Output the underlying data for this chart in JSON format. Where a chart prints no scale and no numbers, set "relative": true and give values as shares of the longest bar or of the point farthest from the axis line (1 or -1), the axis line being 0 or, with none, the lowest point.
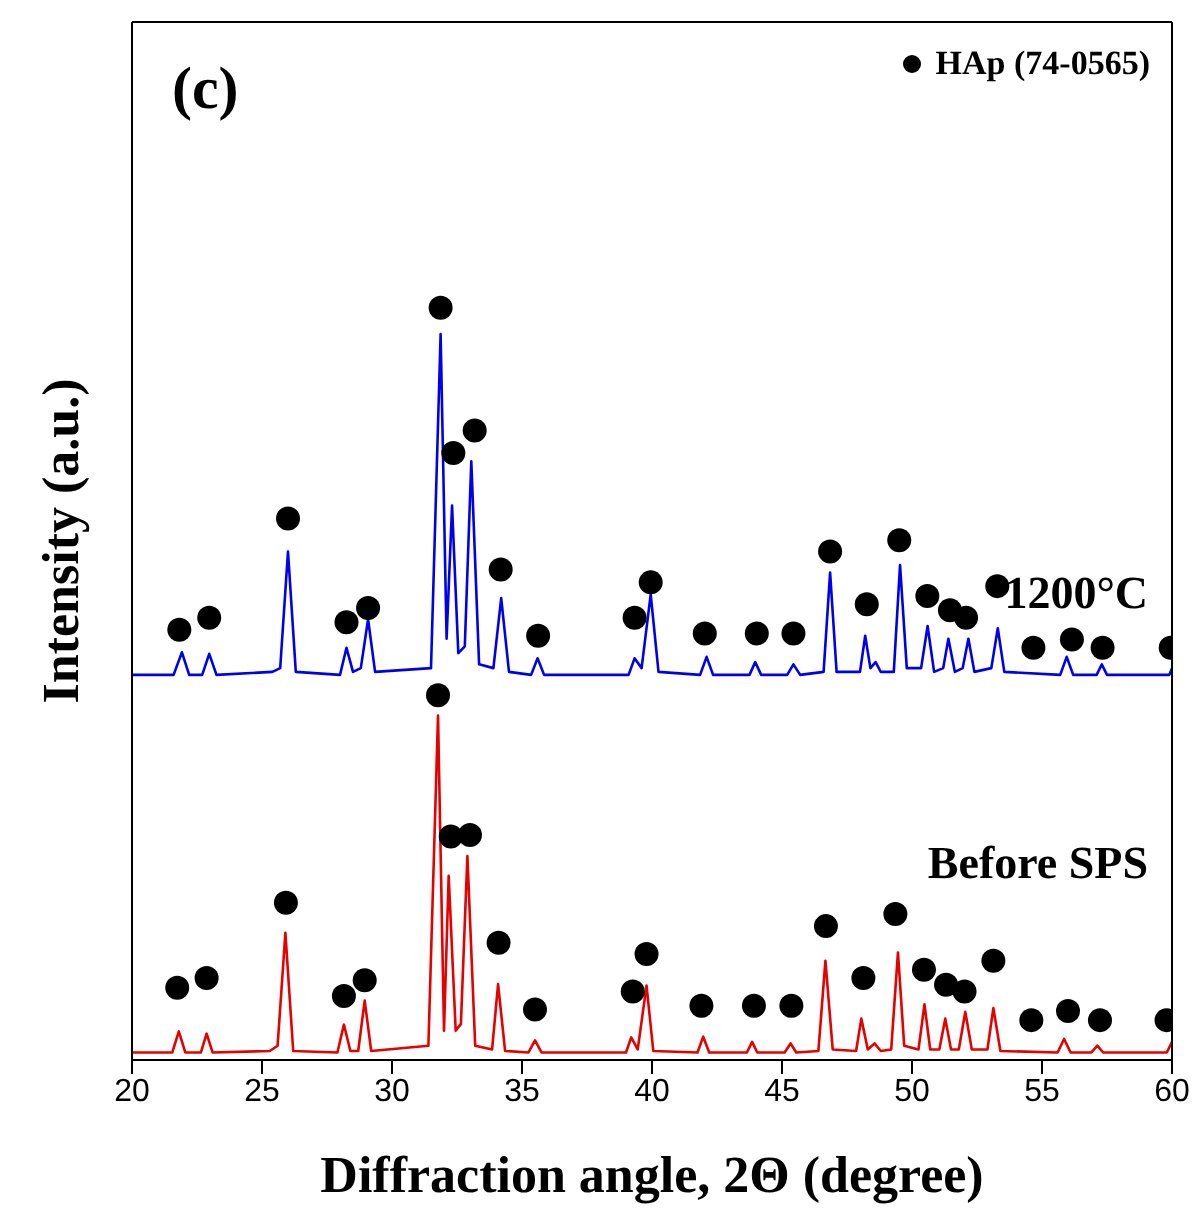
{
  "chart_data": {
    "type": "line",
    "relative": true,
    "xlabel": "Diffraction angle, 2Θ (degree)",
    "ylabel": "Intensity (a.u.)",
    "xlim": [
      20,
      60
    ],
    "xticks": [
      20,
      25,
      30,
      35,
      40,
      45,
      50,
      55,
      60
    ],
    "legend": "top right",
    "annotations": [
      "(c)"
    ],
    "series": [
      {
        "name": "1200°C",
        "color": "#0000ee",
        "x": [
          20,
          21.6,
          21.92,
          22.2,
          22.7,
          22.97,
          23.25,
          25.4,
          25.7,
          26.0,
          26.3,
          28.0,
          28.25,
          28.5,
          28.8,
          29.08,
          29.35,
          31.5,
          31.87,
          32.1,
          32.31,
          32.55,
          32.8,
          33.05,
          33.35,
          33.9,
          34.2,
          34.5,
          35.35,
          35.6,
          35.85,
          39.1,
          39.33,
          39.6,
          39.95,
          40.25,
          41.85,
          42.1,
          42.35,
          43.75,
          43.97,
          44.2,
          45.2,
          45.44,
          45.7,
          46.6,
          46.85,
          47.1,
          48.0,
          48.2,
          48.4,
          48.6,
          48.8,
          49.3,
          49.54,
          49.8,
          50.35,
          50.6,
          50.85,
          51.2,
          51.4,
          51.65,
          51.95,
          52.17,
          52.4,
          53.05,
          53.3,
          53.55,
          55.7,
          55.95,
          56.2,
          57.1,
          57.3,
          57.5,
          59.9,
          60
        ],
        "values": [
          0.512,
          0.512,
          0.542,
          0.512,
          0.512,
          0.54,
          0.512,
          0.516,
          0.521,
          0.676,
          0.516,
          0.512,
          0.548,
          0.516,
          0.521,
          0.586,
          0.516,
          0.521,
          0.965,
          0.56,
          0.737,
          0.541,
          0.55,
          0.796,
          0.526,
          0.521,
          0.614,
          0.516,
          0.512,
          0.534,
          0.512,
          0.512,
          0.534,
          0.521,
          0.619,
          0.516,
          0.512,
          0.536,
          0.512,
          0.512,
          0.529,
          0.512,
          0.512,
          0.526,
          0.512,
          0.516,
          0.648,
          0.516,
          0.516,
          0.564,
          0.521,
          0.529,
          0.516,
          0.516,
          0.658,
          0.521,
          0.521,
          0.577,
          0.516,
          0.521,
          0.56,
          0.516,
          0.521,
          0.56,
          0.516,
          0.521,
          0.574,
          0.516,
          0.512,
          0.536,
          0.512,
          0.512,
          0.526,
          0.512,
          0.512,
          0.521
        ]
      },
      {
        "name": "Before SPS",
        "color": "#e60000",
        "x": [
          20,
          21.55,
          21.8,
          22.05,
          22.65,
          22.87,
          23.1,
          25.3,
          25.6,
          25.9,
          26.2,
          27.9,
          28.15,
          28.4,
          28.7,
          28.95,
          29.2,
          31.4,
          31.77,
          32.0,
          32.18,
          32.45,
          32.65,
          32.9,
          33.2,
          33.85,
          34.08,
          34.35,
          35.25,
          35.5,
          35.75,
          39.0,
          39.2,
          39.45,
          39.79,
          40.05,
          41.75,
          41.97,
          42.2,
          43.65,
          43.85,
          44.05,
          45.1,
          45.33,
          45.55,
          46.4,
          46.67,
          46.95,
          47.85,
          48.05,
          48.3,
          48.56,
          48.8,
          49.2,
          49.46,
          49.7,
          50.25,
          50.48,
          50.7,
          51.05,
          51.28,
          51.5,
          51.8,
          52.05,
          52.3,
          52.9,
          53.13,
          53.4,
          55.6,
          55.85,
          56.1,
          56.9,
          57.13,
          57.35,
          59.8,
          60
        ],
        "values": [
          0.01,
          0.01,
          0.038,
          0.01,
          0.01,
          0.035,
          0.01,
          0.012,
          0.019,
          0.169,
          0.012,
          0.01,
          0.047,
          0.012,
          0.012,
          0.079,
          0.012,
          0.019,
          0.458,
          0.039,
          0.245,
          0.039,
          0.048,
          0.271,
          0.019,
          0.014,
          0.101,
          0.012,
          0.01,
          0.026,
          0.01,
          0.01,
          0.03,
          0.014,
          0.099,
          0.012,
          0.01,
          0.031,
          0.01,
          0.01,
          0.024,
          0.01,
          0.01,
          0.022,
          0.01,
          0.012,
          0.132,
          0.014,
          0.012,
          0.055,
          0.014,
          0.022,
          0.012,
          0.014,
          0.143,
          0.019,
          0.014,
          0.074,
          0.014,
          0.014,
          0.055,
          0.014,
          0.014,
          0.064,
          0.014,
          0.014,
          0.069,
          0.012,
          0.01,
          0.028,
          0.01,
          0.01,
          0.019,
          0.01,
          0.01,
          0.024
        ]
      },
      {
        "name": "HAp (74-0565)",
        "type": "scatter",
        "color": "#000000",
        "marker": "circle",
        "x": [
          21.82,
          22.97,
          26.0,
          28.25,
          29.08,
          31.87,
          32.36,
          33.18,
          34.18,
          35.62,
          39.33,
          39.95,
          42.03,
          44.03,
          45.44,
          46.85,
          48.26,
          49.51,
          50.59,
          51.46,
          52.08,
          53.28,
          54.67,
          56.15,
          57.33,
          59.95,
          21.74,
          22.87,
          25.92,
          28.15,
          28.95,
          31.77,
          32.26,
          33.0,
          34.1,
          35.5,
          39.26,
          39.79,
          41.9,
          43.92,
          45.36,
          46.69,
          48.13,
          49.36,
          50.46,
          51.31,
          52.02,
          53.13,
          54.59,
          56.0,
          57.23,
          59.79
        ],
        "values": [
          0.572,
          0.588,
          0.72,
          0.582,
          0.601,
          1,
          0.807,
          0.837,
          0.652,
          0.564,
          0.588,
          0.635,
          0.567,
          0.567,
          0.567,
          0.676,
          0.606,
          0.691,
          0.617,
          0.598,
          0.588,
          0.63,
          0.548,
          0.559,
          0.548,
          0.548,
          0.096,
          0.109,
          0.209,
          0.085,
          0.106,
          0.485,
          0.297,
          0.299,
          0.156,
          0.067,
          0.091,
          0.141,
          0.072,
          0.072,
          0.072,
          0.178,
          0.109,
          0.194,
          0.12,
          0.1,
          0.091,
          0.132,
          0.053,
          0.065,
          0.053,
          0.053
        ]
      }
    ]
  }
}
